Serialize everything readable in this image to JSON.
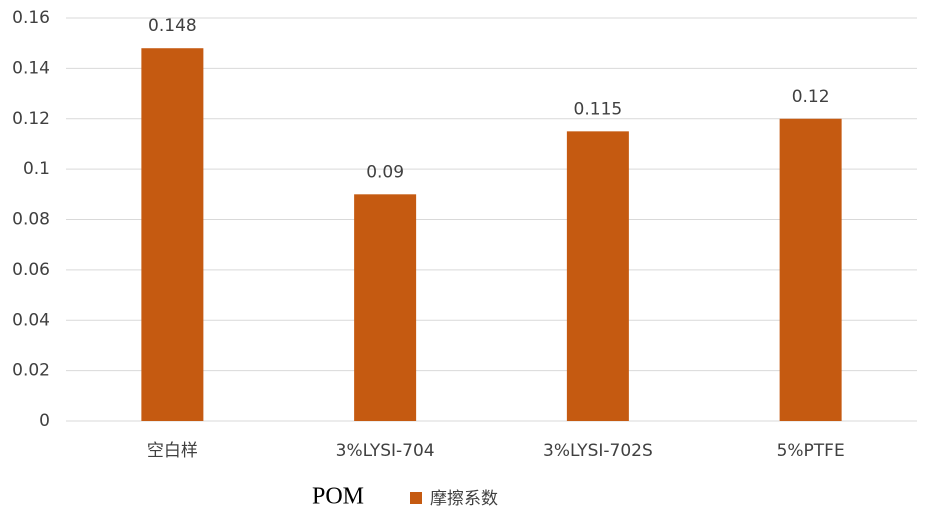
{
  "chart_data": {
    "type": "bar",
    "categories": [
      "空白样",
      "3%LYSI-704",
      "3%LYSI-702S",
      "5%PTFE"
    ],
    "series": [
      {
        "name": "摩擦系数",
        "color": "#c55a11",
        "values": [
          0.148,
          0.09,
          0.115,
          0.12
        ]
      }
    ],
    "xlabel": "POM",
    "ylim": [
      0,
      0.16
    ],
    "yticks": [
      0,
      0.02,
      0.04,
      0.06,
      0.08,
      0.1,
      0.12,
      0.14,
      0.16
    ],
    "grid": true,
    "legend": "bottom"
  }
}
